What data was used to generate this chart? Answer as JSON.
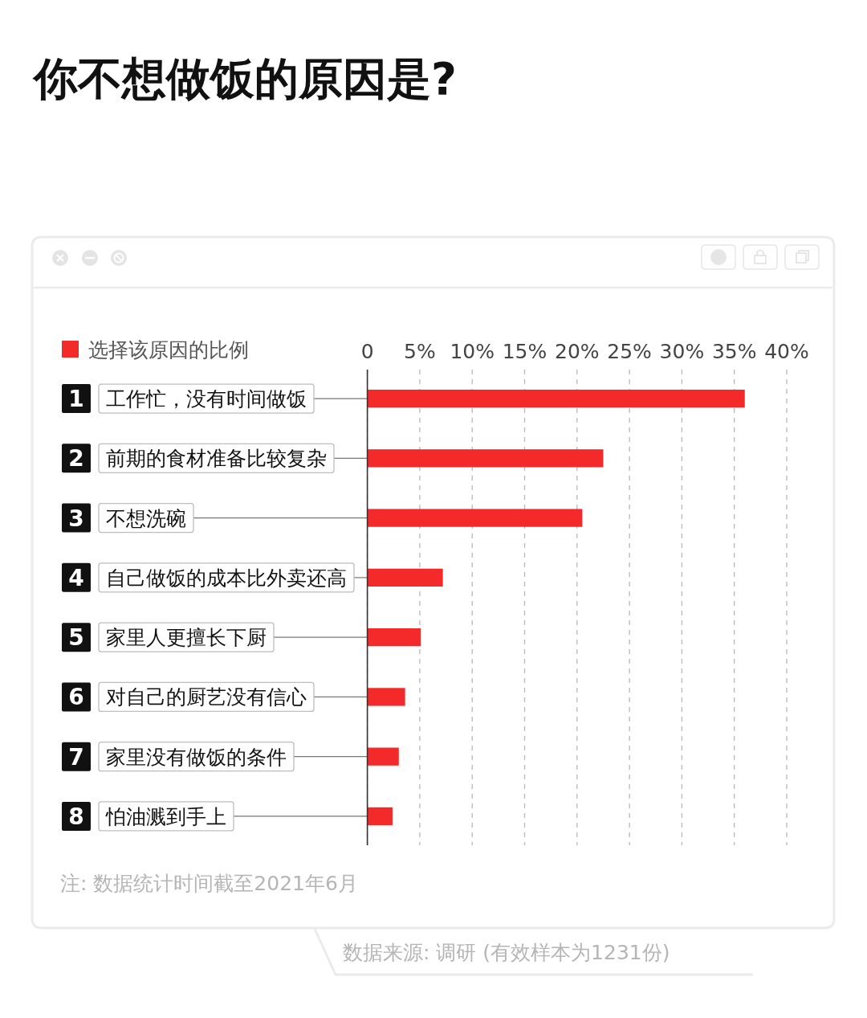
{
  "chart_data": {
    "type": "bar",
    "orientation": "horizontal",
    "title": "你不想做饭的原因是?",
    "categories": [
      "工作忙，没有时间做饭",
      "前期的食材准备比较复杂",
      "不想洗碗",
      "自己做饭的成本比外卖还高",
      "家里人更擅长下厨",
      "对自己的厨艺没有信心",
      "家里没有做饭的条件",
      "怕油溅到手上"
    ],
    "series": [
      {
        "name": "选择该原因的比例",
        "color": "#f42a2a",
        "values": [
          36,
          22.5,
          20.5,
          7.2,
          5.1,
          3.6,
          3.0,
          2.4
        ]
      }
    ],
    "xlim": [
      0,
      40
    ],
    "xticks": [
      0,
      {
        "value": 5,
        "label": "5%"
      },
      {
        "value": 10,
        "label": "10%"
      },
      {
        "value": 15,
        "label": "15%"
      },
      {
        "value": 20,
        "label": "20%"
      },
      {
        "value": 25,
        "label": "25%"
      },
      {
        "value": 30,
        "label": "30%"
      },
      {
        "value": 35,
        "label": "35%"
      },
      {
        "value": 40,
        "label": "40%"
      }
    ],
    "grid": "x",
    "legend": "top left",
    "annotations": [
      "1",
      "2",
      "3",
      "4",
      "5",
      "6",
      "7",
      "8",
      "注: 数据统计时间截至2021年6月",
      "数据来源: 调研 (有效样本为1231份)"
    ]
  }
}
